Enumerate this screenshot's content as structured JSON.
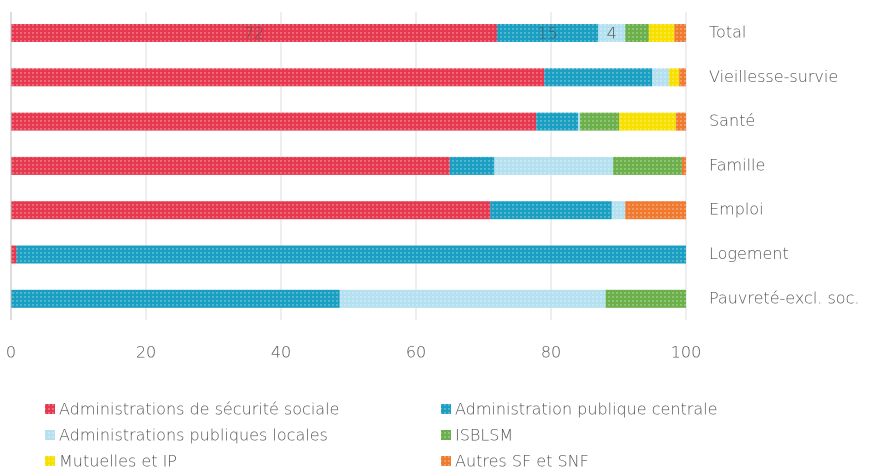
{
  "chart_data": {
    "type": "stacked-barh",
    "categories": [
      "Total",
      "Vieillesse-survie",
      "Santé",
      "Famille",
      "Emploi",
      "Logement",
      "Pauvreté-excl. soc."
    ],
    "series": [
      {
        "name": "Administrations de sécurité sociale",
        "color": "#e63950",
        "values": [
          72,
          79,
          77.8,
          65,
          71,
          0.8,
          0
        ],
        "value_labels": [
          "72",
          null,
          null,
          null,
          null,
          null,
          null
        ]
      },
      {
        "name": "Administration publique centrale",
        "color": "#1a9fc2",
        "values": [
          15,
          16,
          6.2,
          6.6,
          18,
          99.2,
          48.7
        ],
        "value_labels": [
          "15",
          null,
          null,
          null,
          null,
          null,
          null
        ]
      },
      {
        "name": "Administrations publiques locales",
        "color": "#b4e0f0",
        "values": [
          4,
          2.5,
          0.3,
          17.6,
          2,
          0,
          39.4
        ],
        "value_labels": [
          "4",
          null,
          null,
          null,
          null,
          null,
          null
        ]
      },
      {
        "name": "ISBLSM",
        "color": "#6bb04a",
        "values": [
          3.5,
          0,
          5.8,
          10.2,
          0,
          0,
          11.9
        ]
      },
      {
        "name": "Mutuelles et IP",
        "color": "#f7e000",
        "values": [
          3.8,
          1.5,
          8.4,
          0,
          0,
          0,
          0
        ]
      },
      {
        "name": "Autres SF et SNF",
        "color": "#ef7a30",
        "values": [
          1.7,
          1,
          1.5,
          0.6,
          9,
          0,
          0
        ]
      }
    ],
    "xlim": [
      0,
      100
    ],
    "xticks": [
      0,
      20,
      40,
      60,
      80,
      100
    ],
    "grid": true,
    "legend": "bottom"
  }
}
